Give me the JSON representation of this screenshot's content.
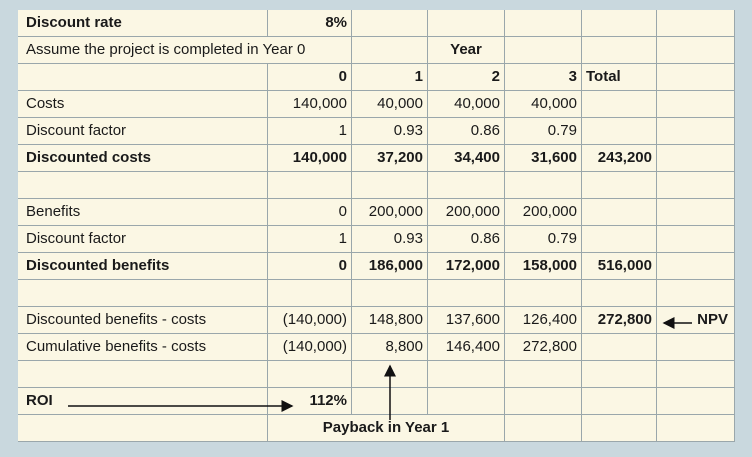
{
  "table": {
    "rows": [
      {
        "label": "Discount rate",
        "cells": [
          "8%"
        ]
      },
      {
        "label": "Assume the project is completed in Year 0",
        "cells": [
          null,
          null,
          "Year"
        ]
      },
      {
        "cells": [
          "0",
          "1",
          "2",
          "3",
          "Total"
        ]
      },
      {
        "label": "Costs",
        "cells": [
          "140,000",
          "40,000",
          "40,000",
          "40,000"
        ]
      },
      {
        "label": "Discount factor",
        "cells": [
          "1",
          "0.93",
          "0.86",
          "0.79"
        ]
      },
      {
        "label": "Discounted costs",
        "cells": [
          "140,000",
          "37,200",
          "34,400",
          "31,600",
          "243,200"
        ]
      },
      {
        "label": "Benefits",
        "cells": [
          "0",
          "200,000",
          "200,000",
          "200,000"
        ]
      },
      {
        "label": "Discount factor",
        "cells": [
          "1",
          "0.93",
          "0.86",
          "0.79"
        ]
      },
      {
        "label": "Discounted benefits",
        "cells": [
          "0",
          "186,000",
          "172,000",
          "158,000",
          "516,000"
        ]
      },
      {
        "label": "Discounted benefits - costs",
        "cells": [
          "(140,000)",
          "148,800",
          "137,600",
          "126,400",
          "272,800",
          "NPV"
        ]
      },
      {
        "label": "Cumulative benefits - costs",
        "cells": [
          "(140,000)",
          "8,800",
          "146,400",
          "272,800"
        ]
      },
      {
        "label": "ROI",
        "cells": [
          "112%"
        ]
      },
      {
        "cells": [
          "Payback in Year 1"
        ]
      }
    ]
  }
}
